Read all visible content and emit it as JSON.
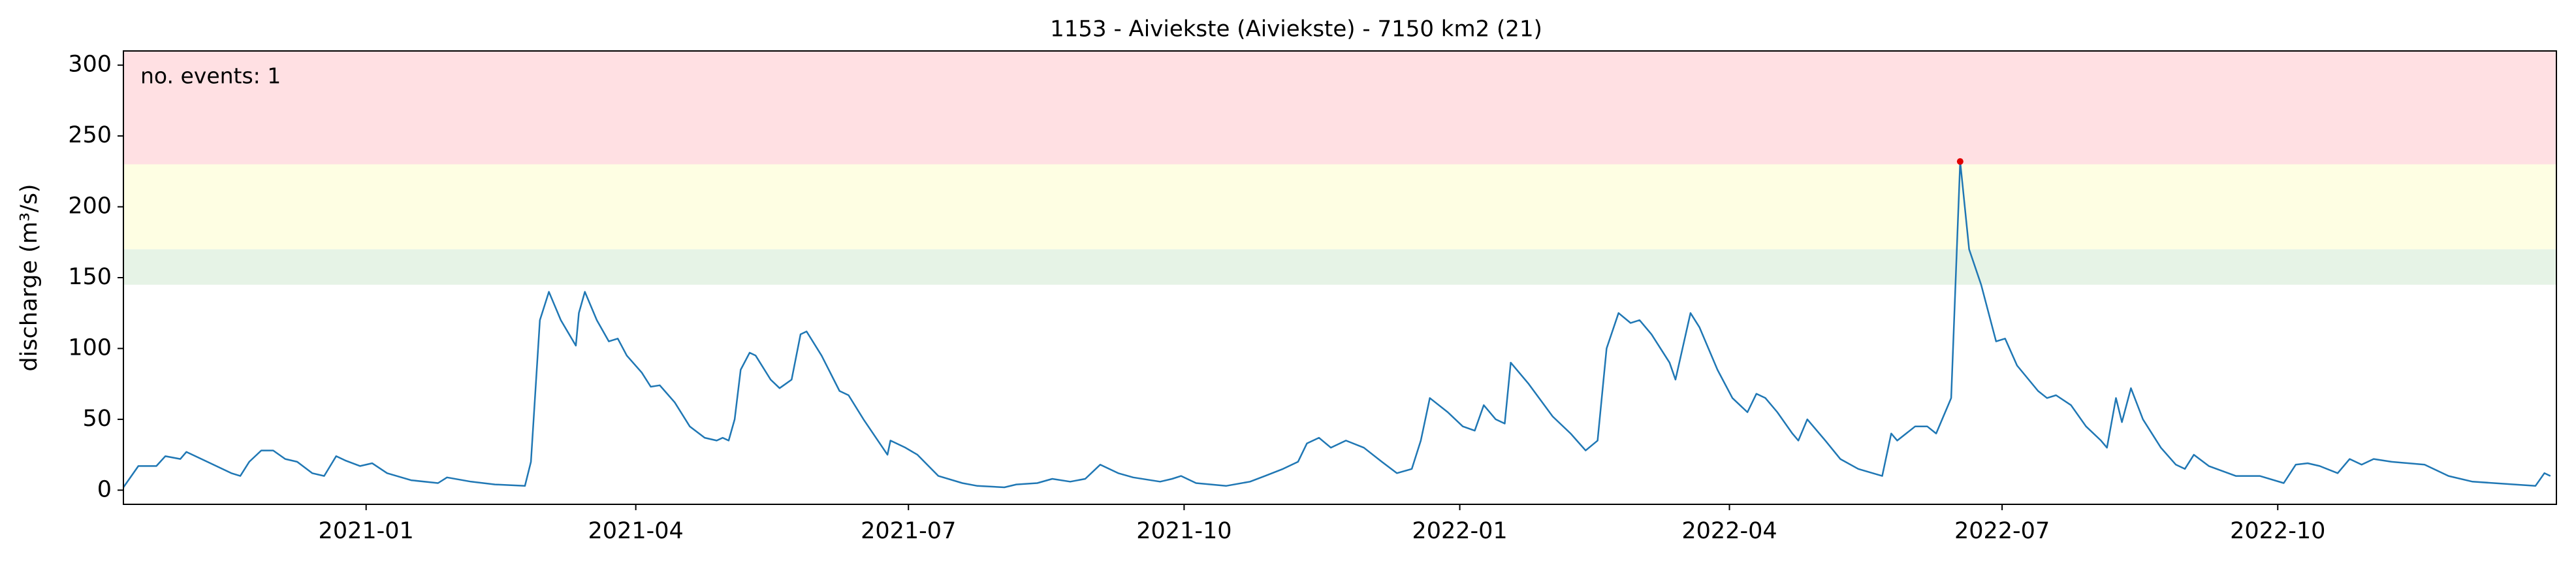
{
  "chart_data": {
    "type": "line",
    "title": "1153 - Aiviekste (Aiviekste) - 7150 km2 (21)",
    "ylabel": "discharge (m³/s)",
    "annotation": "no. events: 1",
    "annotation_color": "#e00000",
    "xlim": [
      "2020-10-12",
      "2023-01-02"
    ],
    "xticks": [
      "2021-01",
      "2021-04",
      "2021-07",
      "2021-10",
      "2022-01",
      "2022-04",
      "2022-07",
      "2022-10"
    ],
    "ylim": [
      -10,
      310
    ],
    "yticks": [
      0,
      50,
      100,
      150,
      200,
      250,
      300
    ],
    "bands": [
      {
        "from": 230,
        "to": 310,
        "color": "#ffe0e3"
      },
      {
        "from": 170,
        "to": 230,
        "color": "#fefee3"
      },
      {
        "from": 145,
        "to": 170,
        "color": "#e6f3e6"
      }
    ],
    "x": [
      "2020-10-12",
      "2020-10-17",
      "2020-10-23",
      "2020-10-26",
      "2020-10-31",
      "2020-11-02",
      "2020-11-09",
      "2020-11-17",
      "2020-11-20",
      "2020-11-23",
      "2020-11-27",
      "2020-12-01",
      "2020-12-05",
      "2020-12-09",
      "2020-12-14",
      "2020-12-18",
      "2020-12-22",
      "2020-12-25",
      "2020-12-30",
      "2021-01-03",
      "2021-01-08",
      "2021-01-16",
      "2021-01-25",
      "2021-01-28",
      "2021-02-05",
      "2021-02-13",
      "2021-02-23",
      "2021-02-25",
      "2021-02-28",
      "2021-03-03",
      "2021-03-07",
      "2021-03-12",
      "2021-03-13",
      "2021-03-15",
      "2021-03-19",
      "2021-03-23",
      "2021-03-26",
      "2021-03-29",
      "2021-04-03",
      "2021-04-06",
      "2021-04-09",
      "2021-04-14",
      "2021-04-19",
      "2021-04-24",
      "2021-04-28",
      "2021-04-30",
      "2021-05-02",
      "2021-05-04",
      "2021-05-06",
      "2021-05-09",
      "2021-05-11",
      "2021-05-16",
      "2021-05-19",
      "2021-05-21",
      "2021-05-23",
      "2021-05-26",
      "2021-05-28",
      "2021-06-02",
      "2021-06-08",
      "2021-06-11",
      "2021-06-16",
      "2021-06-24",
      "2021-06-25",
      "2021-06-30",
      "2021-07-04",
      "2021-07-11",
      "2021-07-19",
      "2021-07-24",
      "2021-08-02",
      "2021-08-06",
      "2021-08-13",
      "2021-08-18",
      "2021-08-24",
      "2021-08-29",
      "2021-09-03",
      "2021-09-09",
      "2021-09-14",
      "2021-09-23",
      "2021-09-27",
      "2021-09-30",
      "2021-10-05",
      "2021-10-15",
      "2021-10-23",
      "2021-10-28",
      "2021-11-03",
      "2021-11-08",
      "2021-11-11",
      "2021-11-15",
      "2021-11-19",
      "2021-11-24",
      "2021-11-30",
      "2021-12-06",
      "2021-12-11",
      "2021-12-16",
      "2021-12-19",
      "2021-12-22",
      "2021-12-28",
      "2022-01-02",
      "2022-01-06",
      "2022-01-09",
      "2022-01-13",
      "2022-01-16",
      "2022-01-18",
      "2022-01-24",
      "2022-02-01",
      "2022-02-07",
      "2022-02-12",
      "2022-02-16",
      "2022-02-19",
      "2022-02-23",
      "2022-02-27",
      "2022-03-02",
      "2022-03-06",
      "2022-03-12",
      "2022-03-14",
      "2022-03-19",
      "2022-03-22",
      "2022-03-28",
      "2022-04-02",
      "2022-04-07",
      "2022-04-10",
      "2022-04-13",
      "2022-04-17",
      "2022-04-22",
      "2022-04-24",
      "2022-04-27",
      "2022-05-03",
      "2022-05-08",
      "2022-05-14",
      "2022-05-22",
      "2022-05-25",
      "2022-05-27",
      "2022-06-02",
      "2022-06-06",
      "2022-06-09",
      "2022-06-13",
      "2022-06-14",
      "2022-06-17",
      "2022-06-20",
      "2022-06-24",
      "2022-06-29",
      "2022-07-02",
      "2022-07-06",
      "2022-07-13",
      "2022-07-16",
      "2022-07-19",
      "2022-07-24",
      "2022-07-29",
      "2022-08-03",
      "2022-08-05",
      "2022-08-08",
      "2022-08-10",
      "2022-08-13",
      "2022-08-17",
      "2022-08-23",
      "2022-08-28",
      "2022-08-31",
      "2022-09-03",
      "2022-09-08",
      "2022-09-17",
      "2022-09-25",
      "2022-10-03",
      "2022-10-07",
      "2022-10-11",
      "2022-10-15",
      "2022-10-21",
      "2022-10-25",
      "2022-10-29",
      "2022-11-02",
      "2022-11-08",
      "2022-11-19",
      "2022-11-27",
      "2022-12-05",
      "2022-12-19",
      "2022-12-26",
      "2022-12-29",
      "2022-12-31"
    ],
    "series": [
      {
        "name": "discharge",
        "color": "#1f77b4",
        "values": [
          2,
          17,
          17,
          24,
          22,
          27,
          20,
          12,
          10,
          20,
          28,
          28,
          22,
          20,
          12,
          10,
          24,
          21,
          17,
          19,
          12,
          7,
          5,
          9,
          6,
          4,
          3,
          20,
          120,
          140,
          120,
          102,
          125,
          140,
          120,
          105,
          107,
          95,
          83,
          73,
          74,
          62,
          45,
          37,
          35,
          37,
          35,
          50,
          85,
          97,
          95,
          78,
          72,
          75,
          78,
          110,
          112,
          95,
          70,
          67,
          50,
          25,
          35,
          30,
          25,
          10,
          5,
          3,
          2,
          4,
          5,
          8,
          6,
          8,
          18,
          12,
          9,
          6,
          8,
          10,
          5,
          3,
          6,
          10,
          15,
          20,
          33,
          37,
          30,
          35,
          30,
          20,
          12,
          15,
          35,
          65,
          55,
          45,
          42,
          60,
          50,
          47,
          90,
          75,
          52,
          40,
          28,
          35,
          100,
          125,
          118,
          120,
          110,
          90,
          78,
          125,
          115,
          85,
          65,
          55,
          68,
          65,
          55,
          40,
          35,
          50,
          35,
          22,
          15,
          10,
          40,
          35,
          45,
          45,
          40,
          60,
          65,
          232,
          170,
          145,
          105,
          107,
          88,
          70,
          65,
          67,
          60,
          45,
          35,
          30,
          65,
          48,
          72,
          50,
          30,
          18,
          15,
          25,
          17,
          10,
          10,
          5,
          18,
          19,
          17,
          12,
          22,
          18,
          22,
          20,
          18,
          10,
          6,
          4,
          3,
          12,
          10
        ]
      }
    ],
    "events": {
      "x": [
        "2022-06-17"
      ],
      "values": [
        232
      ],
      "color": "#e00000"
    }
  }
}
